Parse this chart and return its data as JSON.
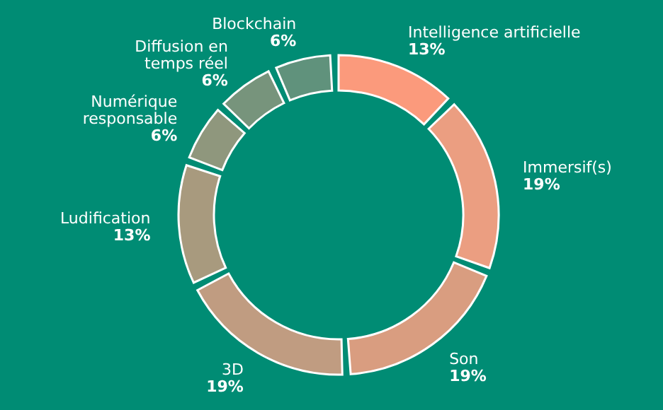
{
  "chart_data": {
    "type": "donut",
    "categories": [
      "Intelligence artificielle",
      "Immersif(s)",
      "Son",
      "3D",
      "Ludification",
      "Numérique responsable",
      "Diffusion en temps réel",
      "Blockchain"
    ],
    "values": [
      13,
      19,
      19,
      19,
      13,
      6,
      6,
      6
    ],
    "value_labels": [
      "13%",
      "19%",
      "19%",
      "19%",
      "13%",
      "6%",
      "6%",
      "6%"
    ],
    "colors": [
      "#fb9a7c",
      "#eb9e81",
      "#d99d80",
      "#c09c81",
      "#a89a7e",
      "#8f977d",
      "#77947c",
      "#60927c"
    ],
    "legend": false
  }
}
